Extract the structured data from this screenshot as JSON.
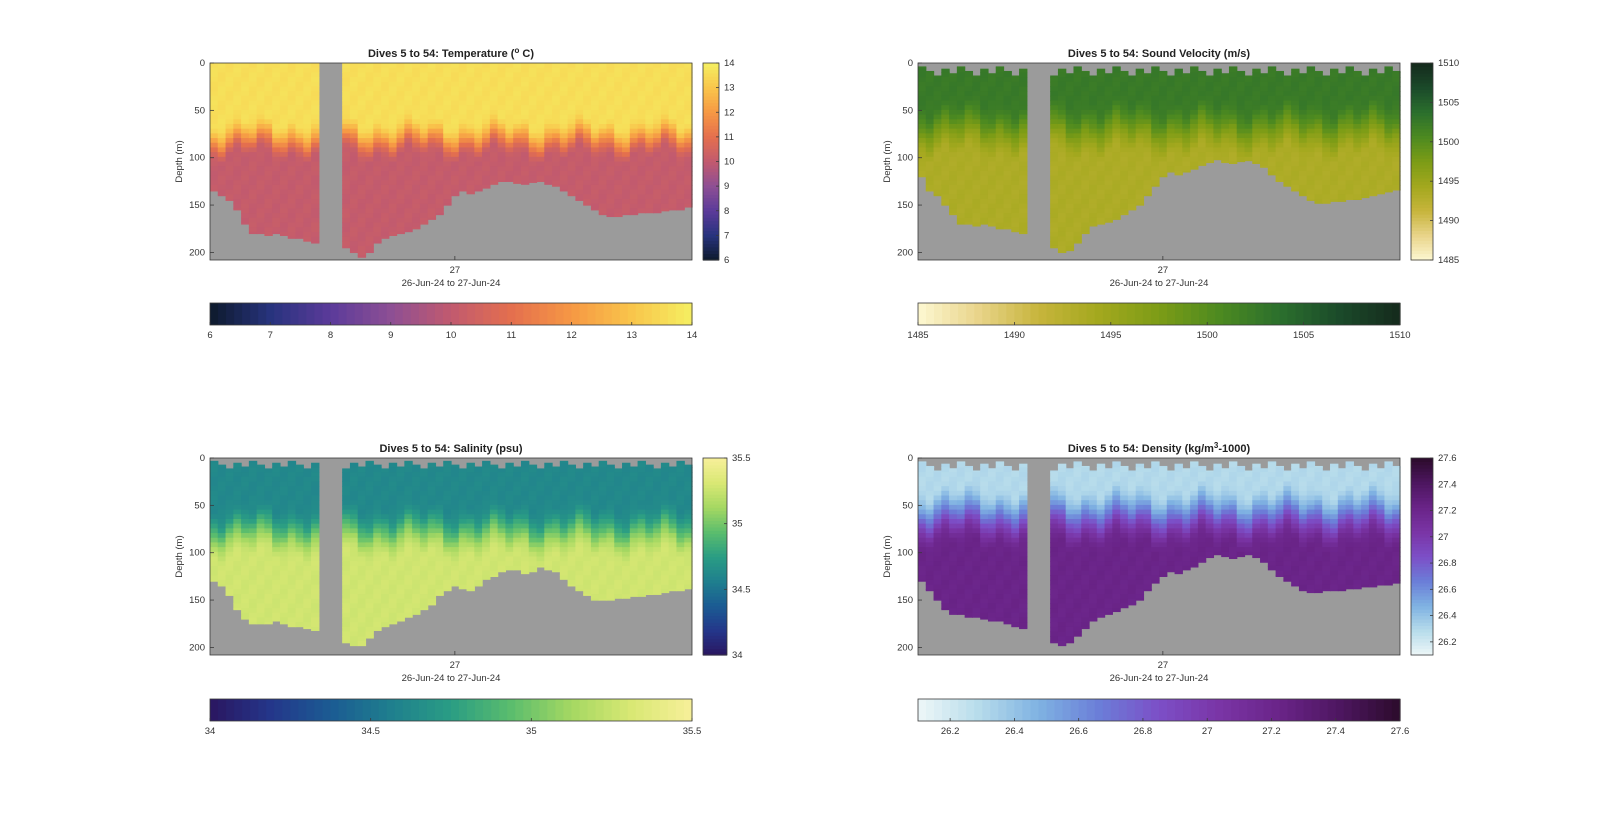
{
  "figure": {
    "x_tick_label": "27",
    "x_label": "26-Jun-24 to 27-Jun-24",
    "y_label": "Depth (m)"
  },
  "chart_data": [
    {
      "type": "heatmap",
      "title": "Dives 5 to 54: Temperature (",
      "title_sup": "o",
      "title_post": " C)",
      "xlabel": "26-Jun-24 to 27-Jun-24",
      "ylabel": "Depth (m)",
      "x_ticks": [
        "27"
      ],
      "y_ticks": [
        0,
        50,
        100,
        150,
        200
      ],
      "ylim": [
        0,
        208
      ],
      "clim": [
        6,
        14
      ],
      "colorbar_ticks": [
        6,
        7,
        8,
        9,
        10,
        11,
        12,
        13,
        14
      ],
      "colormap": [
        "#0d1a2c",
        "#27337d",
        "#5b3b9a",
        "#8d4f94",
        "#c15a6f",
        "#e46f4e",
        "#f69844",
        "#f9c54b",
        "#f5ef62"
      ],
      "nodata_color": "#9b9b9b",
      "surface_value": 13.6,
      "deep_value": 10.1,
      "thermocline_depth": [
        60,
        100
      ],
      "bottom_depth": [
        135,
        140,
        145,
        155,
        170,
        180,
        180,
        182,
        180,
        182,
        185,
        185,
        188,
        190,
        0,
        0,
        0,
        195,
        200,
        205,
        200,
        190,
        185,
        182,
        180,
        178,
        175,
        170,
        165,
        160,
        150,
        140,
        135,
        138,
        135,
        132,
        128,
        125,
        125,
        127,
        128,
        126,
        125,
        128,
        130,
        135,
        140,
        145,
        150,
        155,
        160,
        162,
        162,
        160,
        160,
        158,
        158,
        158,
        156,
        155,
        155,
        152
      ]
    },
    {
      "type": "heatmap",
      "title": "Dives 5 to 54: Sound Velocity (m/s)",
      "title_sup": "",
      "title_post": "",
      "xlabel": "26-Jun-24 to 27-Jun-24",
      "ylabel": "Depth (m)",
      "x_ticks": [
        "27"
      ],
      "y_ticks": [
        0,
        50,
        100,
        150,
        200
      ],
      "ylim": [
        0,
        208
      ],
      "clim": [
        1485,
        1510
      ],
      "colorbar_ticks": [
        1485,
        1490,
        1495,
        1500,
        1505,
        1510
      ],
      "colormap": [
        "#fdf8d2",
        "#e9d48a",
        "#c7b53c",
        "#a3a81e",
        "#7c9c16",
        "#4d8a20",
        "#2b6f2d",
        "#1b4a2a",
        "#152a1c"
      ],
      "nodata_color": "#9b9b9b",
      "surface_value": 1502.5,
      "deep_value": 1493.5,
      "thermocline_depth": [
        40,
        100
      ],
      "top_gap": 12,
      "bottom_depth": [
        120,
        135,
        140,
        150,
        160,
        170,
        170,
        172,
        170,
        172,
        175,
        175,
        178,
        180,
        0,
        0,
        0,
        195,
        200,
        198,
        190,
        180,
        172,
        170,
        168,
        165,
        160,
        155,
        150,
        140,
        130,
        120,
        115,
        118,
        115,
        112,
        108,
        105,
        102,
        105,
        106,
        104,
        103,
        106,
        110,
        118,
        125,
        130,
        135,
        140,
        145,
        148,
        148,
        146,
        146,
        144,
        144,
        142,
        140,
        138,
        136,
        134
      ]
    },
    {
      "type": "heatmap",
      "title": "Dives 5 to 54: Salinity (psu)",
      "title_sup": "",
      "title_post": "",
      "xlabel": "26-Jun-24 to 27-Jun-24",
      "ylabel": "Depth (m)",
      "x_ticks": [
        "27"
      ],
      "y_ticks": [
        0,
        50,
        100,
        150,
        200
      ],
      "ylim": [
        0,
        208
      ],
      "clim": [
        34,
        35.5
      ],
      "colorbar_ticks": [
        34,
        34.5,
        35,
        35.5
      ],
      "colormap": [
        "#2a1660",
        "#24368a",
        "#1b5b93",
        "#1f7f8e",
        "#2a9d84",
        "#5bbd6d",
        "#a5d862",
        "#d9e874",
        "#f7ef9a"
      ],
      "nodata_color": "#9b9b9b",
      "surface_value": 34.62,
      "deep_value": 35.28,
      "thermocline_depth": [
        50,
        105
      ],
      "top_gap": 10,
      "bottom_depth": [
        130,
        135,
        145,
        160,
        170,
        175,
        175,
        175,
        172,
        175,
        178,
        178,
        180,
        182,
        0,
        0,
        0,
        195,
        198,
        198,
        190,
        182,
        178,
        175,
        172,
        168,
        165,
        160,
        155,
        145,
        140,
        135,
        138,
        140,
        135,
        128,
        125,
        120,
        118,
        118,
        122,
        120,
        115,
        118,
        120,
        128,
        135,
        140,
        145,
        150,
        150,
        150,
        148,
        148,
        146,
        146,
        144,
        144,
        142,
        140,
        140,
        138
      ]
    },
    {
      "type": "heatmap",
      "title": "Dives 5 to 54: Density (kg/m",
      "title_sup": "3",
      "title_post": "-1000)",
      "xlabel": "26-Jun-24 to 27-Jun-24",
      "ylabel": "Depth (m)",
      "x_ticks": [
        "27"
      ],
      "y_ticks": [
        0,
        50,
        100,
        150,
        200
      ],
      "ylim": [
        0,
        208
      ],
      "clim": [
        26.1,
        27.6
      ],
      "colorbar_ticks": [
        26.2,
        26.4,
        26.6,
        26.8,
        27,
        27.2,
        27.4,
        27.6
      ],
      "colormap": [
        "#eef7f8",
        "#b7dceb",
        "#7fb2e2",
        "#6b7ed8",
        "#7c4fc7",
        "#7a35a6",
        "#6a2488",
        "#4d1660",
        "#2c0b2c"
      ],
      "nodata_color": "#9b9b9b",
      "surface_value": 26.3,
      "deep_value": 27.22,
      "thermocline_depth": [
        30,
        95
      ],
      "top_gap": 12,
      "bottom_depth": [
        130,
        140,
        150,
        160,
        165,
        165,
        168,
        168,
        170,
        172,
        172,
        175,
        178,
        180,
        0,
        0,
        0,
        195,
        198,
        195,
        188,
        180,
        172,
        168,
        165,
        162,
        158,
        155,
        150,
        140,
        132,
        125,
        120,
        122,
        118,
        115,
        110,
        105,
        102,
        104,
        106,
        104,
        102,
        105,
        110,
        118,
        125,
        130,
        135,
        140,
        142,
        142,
        140,
        140,
        140,
        138,
        138,
        136,
        136,
        134,
        134,
        132
      ]
    }
  ]
}
